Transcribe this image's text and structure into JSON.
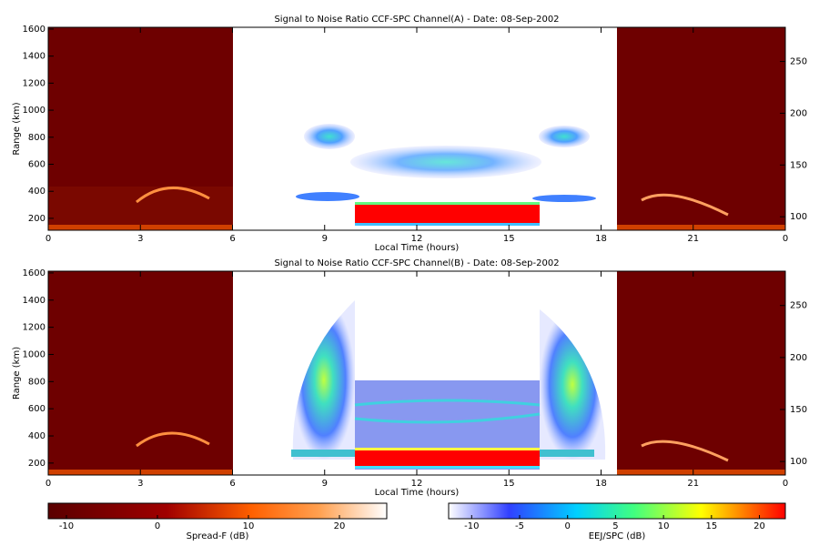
{
  "chart_data": [
    {
      "type": "heatmap",
      "title": "Signal to Noise Ratio CCF-SPC Channel(A) - Date: 08-Sep-2002",
      "x_label": "Local Time (hours)",
      "y_label": "Range (km)",
      "xlim": [
        0,
        24
      ],
      "xticks": [
        0,
        3,
        6,
        9,
        12,
        15,
        18,
        21,
        {
          "value": 24,
          "label": "0"
        }
      ],
      "ylim": [
        112,
        1613
      ],
      "yticks": [
        200,
        400,
        600,
        800,
        1000,
        1200,
        1400,
        1600
      ],
      "y2lim": [
        87,
        283
      ],
      "y2ticks": [
        100,
        150,
        200,
        250
      ]
    },
    {
      "type": "heatmap",
      "title": "Signal to Noise Ratio CCF-SPC Channel(B) - Date: 08-Sep-2002",
      "x_label": "Local Time (hours)",
      "y_label": "Range (km)",
      "xlim": [
        0,
        24
      ],
      "xticks": [
        0,
        3,
        6,
        9,
        12,
        15,
        18,
        21,
        {
          "value": 24,
          "label": "0"
        }
      ],
      "ylim": [
        112,
        1613
      ],
      "yticks": [
        200,
        400,
        600,
        800,
        1000,
        1200,
        1400,
        1600
      ],
      "y2lim": [
        87,
        283
      ],
      "y2ticks": [
        100,
        150,
        200,
        250
      ]
    }
  ],
  "colorbars": [
    {
      "label": "Spread-F (dB)",
      "lim": [
        -12,
        25.2
      ],
      "ticks": [
        -10,
        0,
        10,
        20
      ]
    },
    {
      "label": "EEJ/SPC (dB)",
      "lim": [
        -12.4,
        22.7
      ],
      "ticks": [
        -10,
        -5,
        0,
        5,
        10,
        15,
        20
      ]
    }
  ]
}
